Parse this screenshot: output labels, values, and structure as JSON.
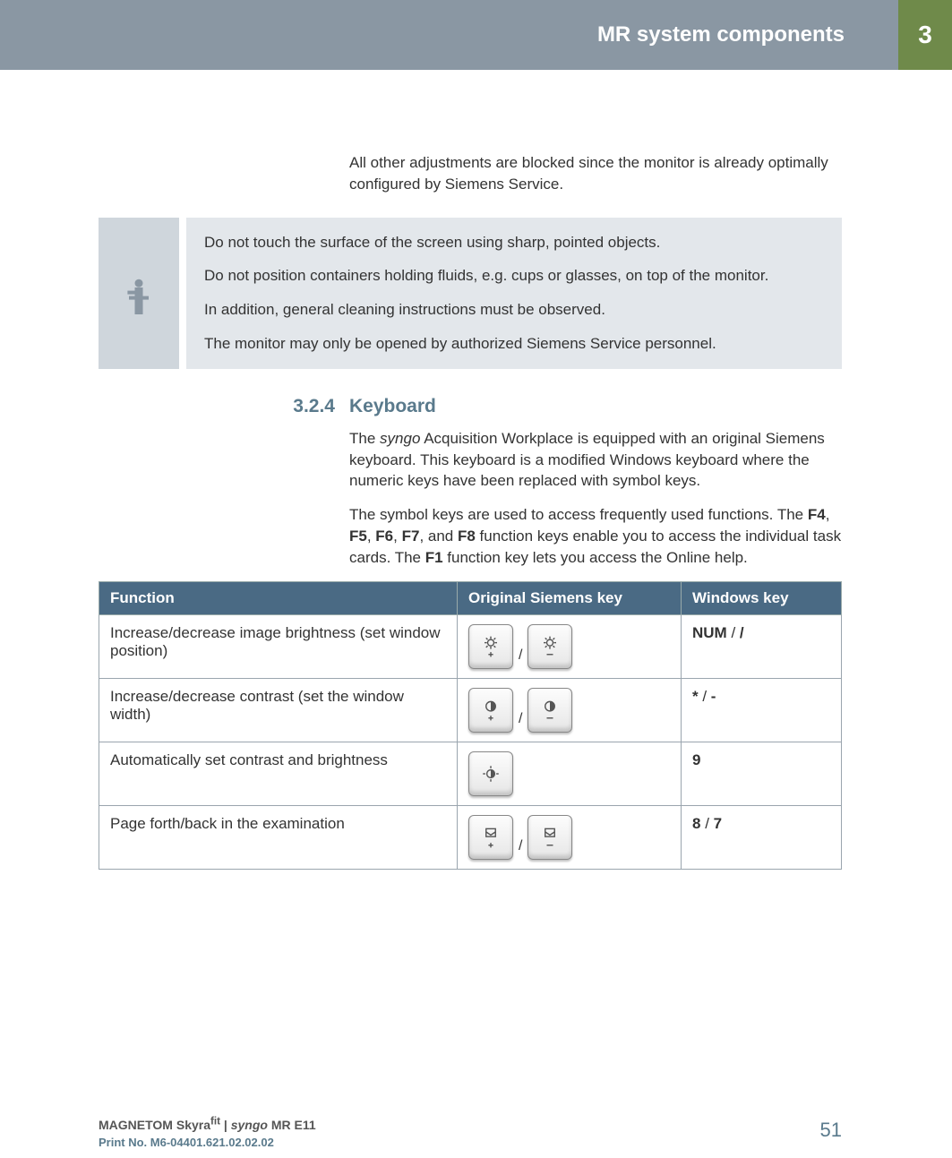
{
  "header": {
    "title": "MR system components",
    "chapter": "3"
  },
  "intro": "All other adjustments are blocked since the monitor is already optimally configured by Siemens Service.",
  "info_notes": [
    "Do not touch the surface of the screen using sharp, pointed objects.",
    "Do not position containers holding fluids, e.g. cups or glasses, on top of the monitor.",
    "In addition, general cleaning instructions must be observed.",
    "The monitor may only be opened by authorized Siemens Service personnel."
  ],
  "subsection": {
    "number": "3.2.4",
    "title": "Keyboard"
  },
  "para1_pre": "The ",
  "para1_italic": "syngo",
  "para1_post": " Acquisition Workplace is equipped with an original Siemens keyboard. This keyboard is a modified Windows keyboard where the numeric keys have been replaced with symbol keys.",
  "para2_a": "The symbol keys are used to access frequently used functions. The ",
  "para2_b1": "F4",
  "para2_s1": ", ",
  "para2_b2": "F5",
  "para2_s2": ", ",
  "para2_b3": "F6",
  "para2_s3": ", ",
  "para2_b4": "F7",
  "para2_s4": ", and ",
  "para2_b5": "F8",
  "para2_c": " function keys enable you to access the individual task cards. The ",
  "para2_b6": "F1",
  "para2_d": " function key lets you access the Online help.",
  "table": {
    "headers": {
      "func": "Function",
      "siemens": "Original Siemens key",
      "win": "Windows key"
    },
    "rows": [
      {
        "func": "Increase/decrease image brightness (set window position)",
        "icons": [
          "sun-plus",
          "sun-minus"
        ],
        "win_a": "NUM",
        "win_sep": " / ",
        "win_b": "/"
      },
      {
        "func": "Increase/decrease contrast (set the window width)",
        "icons": [
          "contrast-plus",
          "contrast-minus"
        ],
        "win_a": "*",
        "win_sep": " / ",
        "win_b": "-"
      },
      {
        "func": "Automatically set contrast and brightness",
        "icons": [
          "auto"
        ],
        "win_a": "9",
        "win_sep": "",
        "win_b": ""
      },
      {
        "func": "Page forth/back in the examination",
        "icons": [
          "page-plus",
          "page-minus"
        ],
        "win_a": "8",
        "win_sep": " / ",
        "win_b": "7"
      }
    ]
  },
  "footer": {
    "product_a": "MAGNETOM Skyra",
    "product_sup": "fit",
    "product_b": " | ",
    "product_syngo": "syngo",
    "product_c": " MR E11",
    "print": "Print No. M6-04401.621.02.02.02",
    "page": "51"
  },
  "colors": {
    "header_bg": "#8a97a3",
    "tab_bg": "#6f8a4a",
    "info_icon_bg": "#cfd6dc",
    "info_text_bg": "#e3e7eb",
    "accent": "#5a7a8c",
    "table_header_bg": "#4a6a84"
  }
}
